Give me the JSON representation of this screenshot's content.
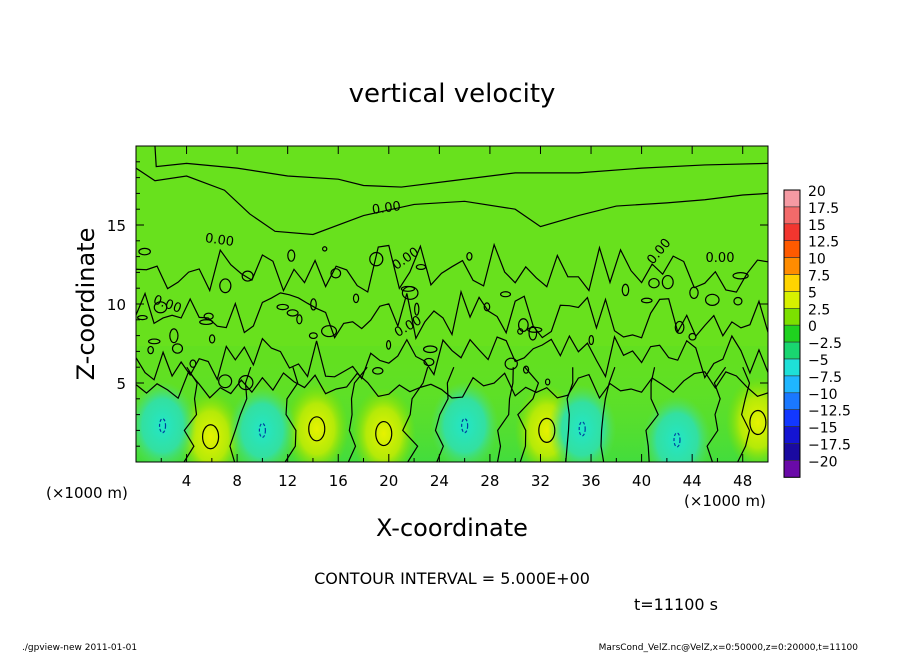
{
  "chart_data": {
    "type": "contour",
    "title": "vertical velocity",
    "xlabel": "X-coordinate",
    "ylabel": "Z-coordinate",
    "x_unit_label": "(×1000 m)",
    "y_unit_label": "(×1000 m)",
    "xlim": [
      0,
      50
    ],
    "ylim": [
      0,
      20
    ],
    "x_ticks": [
      "4",
      "8",
      "12",
      "16",
      "20",
      "24",
      "28",
      "32",
      "36",
      "40",
      "44",
      "48"
    ],
    "y_ticks": [
      "5",
      "10",
      "15"
    ],
    "contour_labels": [
      "0.00",
      "0.00",
      "0.00",
      "0.00",
      "0.00",
      "0.00",
      "0.00"
    ],
    "colorbar_levels": [
      "20",
      "17.5",
      "15",
      "12.5",
      "10",
      "7.5",
      "5",
      "2.5",
      "0",
      "−2.5",
      "−5",
      "−7.5",
      "−10",
      "−12.5",
      "−15",
      "−17.5",
      "−20"
    ],
    "colorbar_colors": [
      "#f59aa3",
      "#f36a6a",
      "#f2362f",
      "#ff5a00",
      "#ff8c00",
      "#ffd400",
      "#d7f000",
      "#7ce000",
      "#1fd21f",
      "#19d670",
      "#1ee0d8",
      "#1fb6ff",
      "#1a78ff",
      "#1238ff",
      "#1414d2",
      "#1a0aa0",
      "#6a0aa8"
    ],
    "contour_interval_text": "CONTOUR INTERVAL = 5.000E+00",
    "time_text": "t=11100 s",
    "grid": false,
    "legend": "colorbar-right"
  },
  "footer": {
    "left": "./gpview-new   2011-01-01",
    "right": "MarsCond_VelZ.nc@VelZ,x=0:50000,z=0:20000,t=11100"
  }
}
